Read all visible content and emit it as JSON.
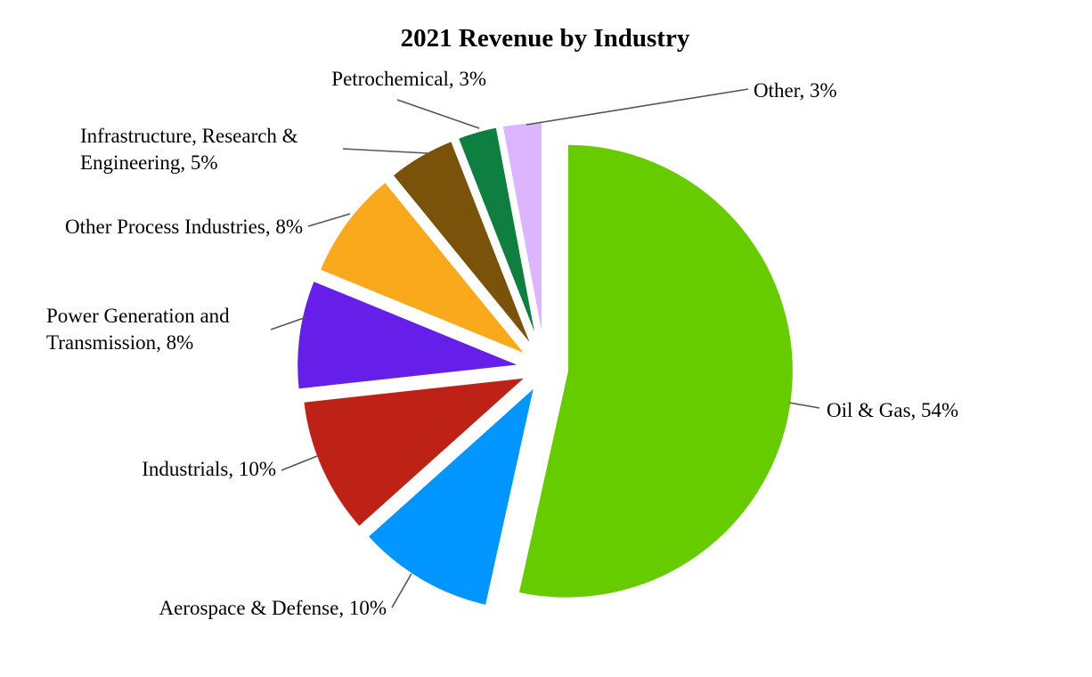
{
  "chart_data": {
    "type": "pie",
    "title": "2021 Revenue by Industry",
    "slices": [
      {
        "name": "Oil & Gas",
        "value": 54,
        "label": [
          "Oil & Gas, 54%"
        ],
        "color": "#66CC00"
      },
      {
        "name": "Aerospace & Defense",
        "value": 10,
        "label": [
          "Aerospace & Defense, 10%"
        ],
        "color": "#0095FF"
      },
      {
        "name": "Industrials",
        "value": 10,
        "label": [
          "Industrials, 10%"
        ],
        "color": "#BE2217"
      },
      {
        "name": "Power Generation and Transmission",
        "value": 8,
        "label": [
          "Power Generation and",
          "Transmission, 8%"
        ],
        "color": "#661FE8"
      },
      {
        "name": "Other Process Industries",
        "value": 8,
        "label": [
          "Other Process Industries, 8%"
        ],
        "color": "#F9A91B"
      },
      {
        "name": "Infrastructure, Research & Engineering",
        "value": 5,
        "label": [
          "Infrastructure, Research &",
          "Engineering, 5%"
        ],
        "color": "#7A520A"
      },
      {
        "name": "Petrochemical",
        "value": 3,
        "label": [
          "Petrochemical, 3%"
        ],
        "color": "#0E7F41"
      },
      {
        "name": "Other",
        "value": 3,
        "label": [
          "Other, 3%"
        ],
        "color": "#DDB5FF"
      }
    ]
  }
}
